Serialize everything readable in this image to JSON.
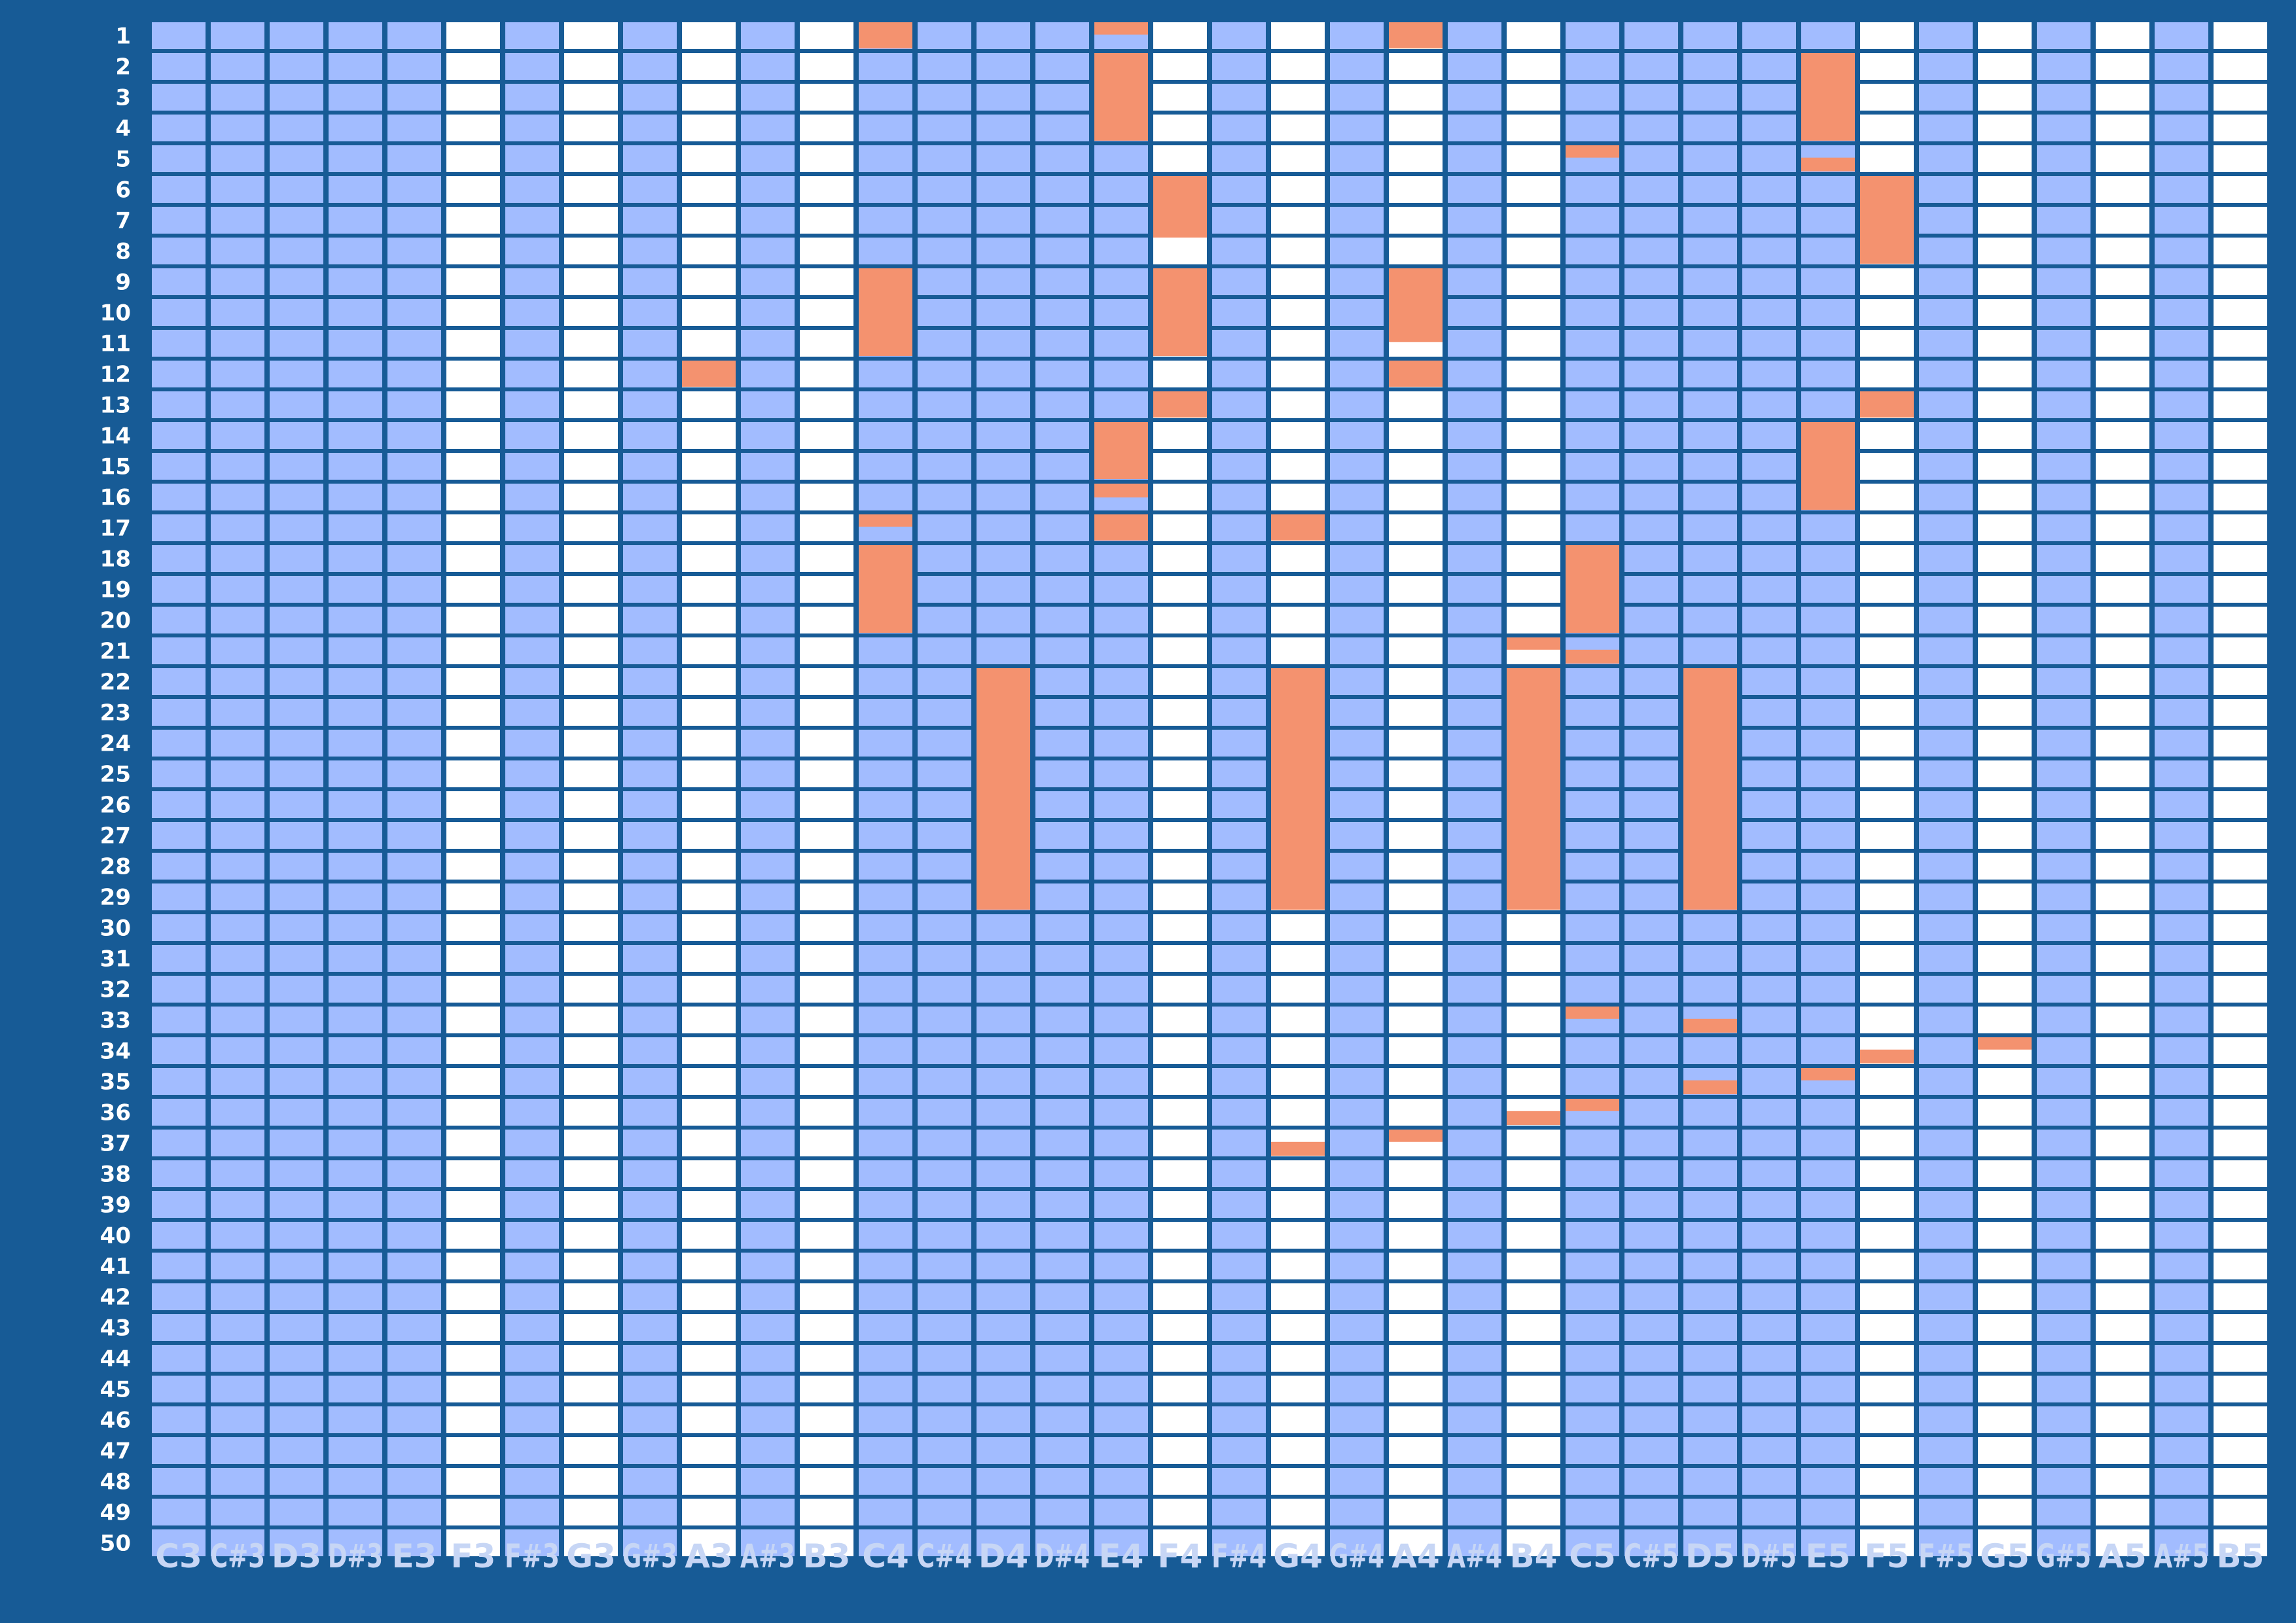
{
  "chart_data": {
    "type": "heatmap",
    "title": "",
    "xlabel": "",
    "ylabel": "",
    "columns": [
      "C3",
      "C#3",
      "D3",
      "D#3",
      "E3",
      "F3",
      "F#3",
      "G3",
      "G#3",
      "A3",
      "A#3",
      "B3",
      "C4",
      "C#4",
      "D4",
      "D#4",
      "E4",
      "F4",
      "F#4",
      "G4",
      "G#4",
      "A4",
      "A#4",
      "B4",
      "C5",
      "C#5",
      "D5",
      "D#5",
      "E5",
      "F5",
      "F#5",
      "G5",
      "G#5",
      "A5",
      "A#5",
      "B5"
    ],
    "rows": [
      "1",
      "2",
      "3",
      "4",
      "5",
      "6",
      "7",
      "8",
      "9",
      "10",
      "11",
      "12",
      "13",
      "14",
      "15",
      "16",
      "17",
      "18",
      "19",
      "20",
      "21",
      "22",
      "23",
      "24",
      "25",
      "26",
      "27",
      "28",
      "29",
      "30",
      "31",
      "32",
      "33",
      "34",
      "35",
      "36",
      "37",
      "38",
      "39",
      "40",
      "41",
      "42",
      "43",
      "44",
      "45",
      "46",
      "47",
      "48",
      "49",
      "50"
    ],
    "ylim": [
      1,
      50
    ],
    "notes": [
      {
        "note": "C4",
        "start": 1.0,
        "end": 1.85
      },
      {
        "note": "E4",
        "start": 1.0,
        "end": 1.4
      },
      {
        "note": "A4",
        "start": 1.0,
        "end": 1.85
      },
      {
        "note": "E4",
        "start": 2.0,
        "end": 4.85
      },
      {
        "note": "E5",
        "start": 2.0,
        "end": 4.85
      },
      {
        "note": "C5",
        "start": 5.0,
        "end": 5.4
      },
      {
        "note": "E5",
        "start": 5.4,
        "end": 5.85
      },
      {
        "note": "F4",
        "start": 6.0,
        "end": 8.0
      },
      {
        "note": "F5",
        "start": 6.0,
        "end": 8.85
      },
      {
        "note": "C4",
        "start": 9.0,
        "end": 11.85
      },
      {
        "note": "F4",
        "start": 9.0,
        "end": 11.85
      },
      {
        "note": "A4",
        "start": 9.0,
        "end": 11.4
      },
      {
        "note": "A3",
        "start": 12.0,
        "end": 12.85
      },
      {
        "note": "A4",
        "start": 12.0,
        "end": 12.85
      },
      {
        "note": "F4",
        "start": 13.0,
        "end": 13.85
      },
      {
        "note": "F5",
        "start": 13.0,
        "end": 13.85
      },
      {
        "note": "E4",
        "start": 14.0,
        "end": 15.85
      },
      {
        "note": "E4",
        "start": 16.0,
        "end": 16.45
      },
      {
        "note": "E5",
        "start": 14.0,
        "end": 16.85
      },
      {
        "note": "C4",
        "start": 17.0,
        "end": 17.4
      },
      {
        "note": "E4",
        "start": 17.0,
        "end": 17.85
      },
      {
        "note": "G4",
        "start": 17.0,
        "end": 17.85
      },
      {
        "note": "C4",
        "start": 18.0,
        "end": 20.85
      },
      {
        "note": "C5",
        "start": 18.0,
        "end": 20.85
      },
      {
        "note": "B4",
        "start": 21.0,
        "end": 21.4
      },
      {
        "note": "C5",
        "start": 21.4,
        "end": 21.85
      },
      {
        "note": "D4",
        "start": 22.0,
        "end": 29.85
      },
      {
        "note": "G4",
        "start": 22.0,
        "end": 29.85
      },
      {
        "note": "B4",
        "start": 22.0,
        "end": 29.85
      },
      {
        "note": "D5",
        "start": 22.0,
        "end": 29.85
      },
      {
        "note": "C5",
        "start": 33.0,
        "end": 33.4
      },
      {
        "note": "D5",
        "start": 33.4,
        "end": 33.85
      },
      {
        "note": "G5",
        "start": 34.0,
        "end": 34.4
      },
      {
        "note": "F5",
        "start": 34.4,
        "end": 34.85
      },
      {
        "note": "E5",
        "start": 35.0,
        "end": 35.4
      },
      {
        "note": "D5",
        "start": 35.4,
        "end": 35.85
      },
      {
        "note": "C5",
        "start": 36.0,
        "end": 36.4
      },
      {
        "note": "B4",
        "start": 36.4,
        "end": 36.85
      },
      {
        "note": "A4",
        "start": 37.0,
        "end": 37.4
      },
      {
        "note": "G4",
        "start": 37.4,
        "end": 37.85
      }
    ]
  },
  "colors": {
    "background": "#175b96",
    "white_key": "#ffffff",
    "black_key": "#a2bcff",
    "black_key_dark": "#8aaef7",
    "note": "#f4926f",
    "row_label": "#ffffff",
    "column_label": "#c7d6f5"
  }
}
